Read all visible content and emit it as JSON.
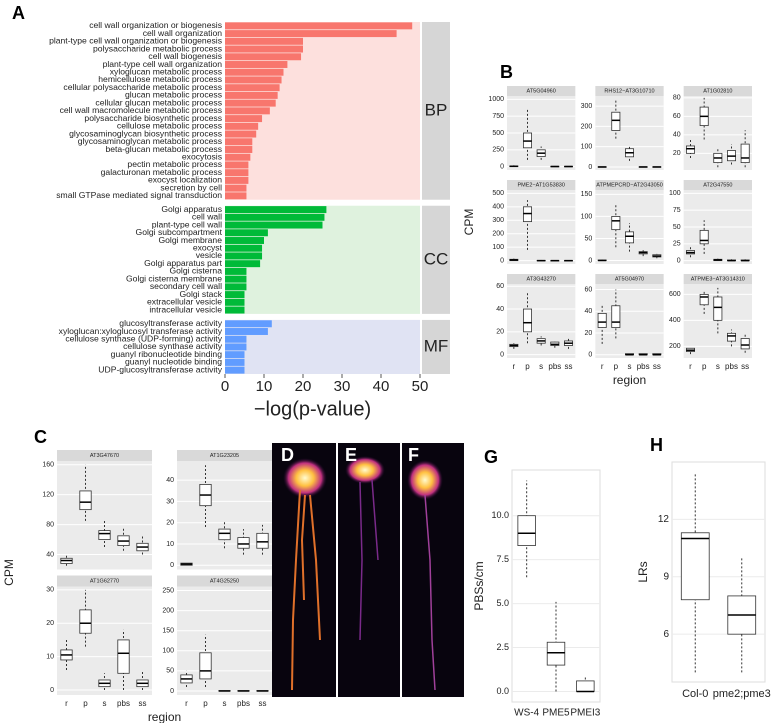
{
  "chart_data": [
    {
      "type": "bar",
      "orientation": "horizontal",
      "panel_label": "A",
      "xlabel": "−log(p-value)",
      "xlim": [
        0,
        50
      ],
      "xticks": [
        0,
        10,
        20,
        30,
        40,
        50
      ],
      "facets": [
        {
          "name": "BP",
          "color": "#f8766d",
          "background": "#fde0dd",
          "categories": [
            "cell wall organization or biogenesis",
            "cell wall organization",
            "plant-type cell wall organization or biogenesis",
            "polysaccharide metabolic process",
            "cell wall biogenesis",
            "plant-type cell wall organization",
            "xyloglucan metabolic process",
            "hemicellulose metabolic process",
            "cellular polysaccharide metabolic process",
            "glucan metabolic process",
            "cellular glucan metabolic process",
            "cell wall macromolecule metabolic process",
            "polysaccharide biosynthetic process",
            "cellulose metabolic process",
            "glycosaminoglycan biosynthetic process",
            "glycosaminoglycan metabolic process",
            "beta-glucan metabolic process",
            "exocytosis",
            "pectin metabolic process",
            "galacturonan metabolic process",
            "exocyst localization",
            "secretion by cell",
            "small GTPase mediated signal transduction"
          ],
          "values": [
            48,
            44,
            20,
            20,
            19.5,
            16,
            15,
            14.5,
            14,
            13.5,
            13,
            11.5,
            9.5,
            8.5,
            8,
            7,
            7,
            6.5,
            6,
            6,
            6,
            5.5,
            5.5
          ]
        },
        {
          "name": "CC",
          "color": "#00ba38",
          "background": "#dff2de",
          "categories": [
            "Golgi apparatus",
            "cell wall",
            "plant-type cell wall",
            "Golgi subcompartment",
            "Golgi membrane",
            "exocyst",
            "vesicle",
            "Golgi apparatus part",
            "Golgi cisterna",
            "Golgi cisterna membrane",
            "secondary cell wall",
            "Golgi stack",
            "extracellular vesicle",
            "intracellular vesicle"
          ],
          "values": [
            26,
            25.5,
            25,
            11,
            10,
            9.5,
            9.5,
            9,
            5.5,
            5.5,
            5.5,
            5,
            5,
            5
          ]
        },
        {
          "name": "MF",
          "color": "#619cff",
          "background": "#e0e3f3",
          "categories": [
            "glucosyltransferase activity",
            "xyloglucan:xyloglucosyl transferase activity",
            "cellulose synthase (UDP-forming) activity",
            "cellulose synthase activity",
            "guanyl ribonucleotide binding",
            "guanyl nucleotide binding",
            "UDP-glucosyltransferase activity"
          ],
          "values": [
            12,
            11,
            5.5,
            5.5,
            5,
            5,
            5
          ]
        }
      ]
    },
    {
      "type": "box",
      "panel_label": "B",
      "ylabel": "CPM",
      "xlabel": "region",
      "categories": [
        "r",
        "p",
        "s",
        "pbs",
        "ss"
      ],
      "facets": [
        {
          "title": "AT5G04960",
          "ylim": [
            -50,
            1050
          ],
          "yticks": [
            0,
            250,
            500,
            750,
            1000
          ],
          "values": [
            {
              "min": 0,
              "q1": 0,
              "median": 5,
              "q3": 10,
              "max": 20
            },
            {
              "min": 100,
              "q1": 280,
              "median": 380,
              "q3": 500,
              "max": 850
            },
            {
              "min": 100,
              "q1": 150,
              "median": 200,
              "q3": 250,
              "max": 300
            },
            {
              "min": 0,
              "q1": 0,
              "median": 2,
              "q3": 5,
              "max": 10
            },
            {
              "min": 0,
              "q1": 0,
              "median": 2,
              "q3": 5,
              "max": 10
            }
          ]
        },
        {
          "title": "RHS12−AT3G10710",
          "ylim": [
            -15,
            350
          ],
          "yticks": [
            0,
            100,
            200,
            300
          ],
          "values": [
            {
              "min": 0,
              "q1": 0,
              "median": 0,
              "q3": 1,
              "max": 2
            },
            {
              "min": 140,
              "q1": 180,
              "median": 230,
              "q3": 270,
              "max": 330
            },
            {
              "min": 30,
              "q1": 50,
              "median": 70,
              "q3": 90,
              "max": 100
            },
            {
              "min": 0,
              "q1": 0,
              "median": 0,
              "q3": 1,
              "max": 2
            },
            {
              "min": 0,
              "q1": 0,
              "median": 0,
              "q3": 1,
              "max": 2
            }
          ]
        },
        {
          "title": "AT1G02810",
          "ylim": [
            2,
            82
          ],
          "yticks": [
            20,
            40,
            60,
            80
          ],
          "values": [
            {
              "min": 15,
              "q1": 20,
              "median": 25,
              "q3": 28,
              "max": 35
            },
            {
              "min": 35,
              "q1": 50,
              "median": 60,
              "q3": 70,
              "max": 80
            },
            {
              "min": 5,
              "q1": 10,
              "median": 15,
              "q3": 20,
              "max": 25
            },
            {
              "min": 8,
              "q1": 12,
              "median": 17,
              "q3": 23,
              "max": 30
            },
            {
              "min": 5,
              "q1": 10,
              "median": 15,
              "q3": 30,
              "max": 45
            }
          ]
        },
        {
          "title": "PME2−AT1G53830",
          "ylim": [
            -25,
            525
          ],
          "yticks": [
            0,
            100,
            200,
            300,
            400,
            500
          ],
          "values": [
            {
              "min": 0,
              "q1": 0,
              "median": 5,
              "q3": 10,
              "max": 30
            },
            {
              "min": 80,
              "q1": 290,
              "median": 350,
              "q3": 400,
              "max": 450
            },
            {
              "min": 0,
              "q1": 0,
              "median": 0,
              "q3": 2,
              "max": 5
            },
            {
              "min": 0,
              "q1": 0,
              "median": 0,
              "q3": 1,
              "max": 2
            },
            {
              "min": 0,
              "q1": 0,
              "median": 0,
              "q3": 1,
              "max": 2
            }
          ]
        },
        {
          "title": "ATPMEPCRD−AT2G43050",
          "ylim": [
            -8,
            160
          ],
          "yticks": [
            0,
            50,
            100,
            150
          ],
          "values": [
            {
              "min": 0,
              "q1": 0,
              "median": 0,
              "q3": 1,
              "max": 2
            },
            {
              "min": 30,
              "q1": 70,
              "median": 90,
              "q3": 100,
              "max": 130
            },
            {
              "min": 20,
              "q1": 40,
              "median": 55,
              "q3": 65,
              "max": 85
            },
            {
              "min": 10,
              "q1": 15,
              "median": 18,
              "q3": 20,
              "max": 25
            },
            {
              "min": 5,
              "q1": 8,
              "median": 10,
              "q3": 13,
              "max": 15
            }
          ]
        },
        {
          "title": "AT2G47550",
          "ylim": [
            -5,
            105
          ],
          "yticks": [
            0,
            25,
            50,
            75,
            100
          ],
          "values": [
            {
              "min": 5,
              "q1": 10,
              "median": 12,
              "q3": 15,
              "max": 20
            },
            {
              "min": 10,
              "q1": 25,
              "median": 30,
              "q3": 45,
              "max": 60
            },
            {
              "min": 0,
              "q1": 0,
              "median": 1,
              "q3": 2,
              "max": 3
            },
            {
              "min": 0,
              "q1": 0,
              "median": 0,
              "q3": 1,
              "max": 2
            },
            {
              "min": 0,
              "q1": 0,
              "median": 0,
              "q3": 1,
              "max": 2
            }
          ]
        },
        {
          "title": "AT3G43270",
          "ylim": [
            -3,
            62
          ],
          "yticks": [
            0,
            20,
            40,
            60
          ],
          "values": [
            {
              "min": 5,
              "q1": 7,
              "median": 8,
              "q3": 9,
              "max": 10
            },
            {
              "min": 10,
              "q1": 20,
              "median": 28,
              "q3": 40,
              "max": 55
            },
            {
              "min": 8,
              "q1": 10,
              "median": 12,
              "q3": 14,
              "max": 16
            },
            {
              "min": 6,
              "q1": 8,
              "median": 9,
              "q3": 11,
              "max": 12
            },
            {
              "min": 5,
              "q1": 8,
              "median": 10,
              "q3": 12,
              "max": 15
            }
          ]
        },
        {
          "title": "AT5G04970",
          "ylim": [
            -3,
            65
          ],
          "yticks": [
            0,
            20,
            40,
            60
          ],
          "values": [
            {
              "min": 10,
              "q1": 25,
              "median": 30,
              "q3": 38,
              "max": 45
            },
            {
              "min": 15,
              "q1": 25,
              "median": 30,
              "q3": 45,
              "max": 60
            },
            {
              "min": 0,
              "q1": 0,
              "median": 0,
              "q3": 1,
              "max": 1
            },
            {
              "min": 0,
              "q1": 0,
              "median": 0,
              "q3": 1,
              "max": 1
            },
            {
              "min": 0,
              "q1": 0,
              "median": 0,
              "q3": 1,
              "max": 1
            }
          ]
        },
        {
          "title": "ATPME3−AT3G14310",
          "ylim": [
            110,
            680
          ],
          "yticks": [
            200,
            400,
            600
          ],
          "values": [
            {
              "min": 140,
              "q1": 160,
              "median": 170,
              "q3": 185,
              "max": 200
            },
            {
              "min": 450,
              "q1": 520,
              "median": 580,
              "q3": 600,
              "max": 620
            },
            {
              "min": 300,
              "q1": 400,
              "median": 500,
              "q3": 580,
              "max": 650
            },
            {
              "min": 200,
              "q1": 240,
              "median": 280,
              "q3": 300,
              "max": 330
            },
            {
              "min": 150,
              "q1": 180,
              "median": 210,
              "q3": 260,
              "max": 300
            }
          ]
        }
      ]
    },
    {
      "type": "box",
      "panel_label": "C",
      "ylabel": "CPM",
      "xlabel": "region",
      "categories": [
        "r",
        "p",
        "s",
        "pbs",
        "ss"
      ],
      "facets": [
        {
          "title": "AT3G47670",
          "ylim": [
            20,
            165
          ],
          "yticks": [
            40,
            80,
            120,
            160
          ],
          "values": [
            {
              "min": 25,
              "q1": 28,
              "median": 32,
              "q3": 35,
              "max": 40
            },
            {
              "min": 85,
              "q1": 100,
              "median": 110,
              "q3": 125,
              "max": 160
            },
            {
              "min": 50,
              "q1": 60,
              "median": 68,
              "q3": 72,
              "max": 85
            },
            {
              "min": 45,
              "q1": 52,
              "median": 58,
              "q3": 65,
              "max": 75
            },
            {
              "min": 40,
              "q1": 45,
              "median": 50,
              "q3": 55,
              "max": 65
            }
          ]
        },
        {
          "title": "AT1G23205",
          "ylim": [
            -2,
            49
          ],
          "yticks": [
            0,
            10,
            20,
            30,
            40
          ],
          "values": [
            {
              "min": 0,
              "q1": 0,
              "median": 0.5,
              "q3": 1,
              "max": 1.5
            },
            {
              "min": 18,
              "q1": 28,
              "median": 33,
              "q3": 38,
              "max": 47
            },
            {
              "min": 8,
              "q1": 12,
              "median": 15,
              "q3": 17,
              "max": 21
            },
            {
              "min": 5,
              "q1": 8,
              "median": 10,
              "q3": 13,
              "max": 17
            },
            {
              "min": 5,
              "q1": 8,
              "median": 11,
              "q3": 15,
              "max": 19
            }
          ]
        },
        {
          "title": "AT1G62770",
          "ylim": [
            -1.5,
            31
          ],
          "yticks": [
            0,
            10,
            20,
            30
          ],
          "values": [
            {
              "min": 6,
              "q1": 9,
              "median": 10.5,
              "q3": 12,
              "max": 15
            },
            {
              "min": 13,
              "q1": 17,
              "median": 20,
              "q3": 24,
              "max": 30
            },
            {
              "min": 0,
              "q1": 1,
              "median": 2,
              "q3": 3,
              "max": 5
            },
            {
              "min": 0,
              "q1": 5,
              "median": 11,
              "q3": 15,
              "max": 18
            },
            {
              "min": 0,
              "q1": 1,
              "median": 2,
              "q3": 3,
              "max": 6
            }
          ]
        },
        {
          "title": "AT4G25250",
          "ylim": [
            -10,
            260
          ],
          "yticks": [
            0,
            50,
            100,
            150,
            200,
            250
          ],
          "values": [
            {
              "min": 10,
              "q1": 20,
              "median": 30,
              "q3": 40,
              "max": 50
            },
            {
              "min": 10,
              "q1": 30,
              "median": 50,
              "q3": 95,
              "max": 140
            },
            {
              "min": 0,
              "q1": 0,
              "median": 0,
              "q3": 1,
              "max": 1
            },
            {
              "min": 0,
              "q1": 0,
              "median": 0,
              "q3": 1,
              "max": 1
            },
            {
              "min": 0,
              "q1": 0,
              "median": 0,
              "q3": 1,
              "max": 1
            }
          ]
        }
      ]
    },
    {
      "type": "box",
      "panel_label": "G",
      "ylabel": "PBSs/cm",
      "categories": [
        "WS-4",
        "PME5",
        "PMEI3"
      ],
      "facets": [
        {
          "ylim": [
            -0.6,
            12.6
          ],
          "yticks": [
            {
              "value": 0,
              "label": "0.0"
            },
            {
              "value": 2.5,
              "label": "2.5"
            },
            {
              "value": 5,
              "label": "5.0"
            },
            {
              "value": 7.5,
              "label": "7.5"
            },
            {
              "value": 10,
              "label": "10.0"
            }
          ],
          "values": [
            {
              "min": 6.5,
              "q1": 8.3,
              "median": 9,
              "q3": 10,
              "max": 12
            },
            {
              "min": 0,
              "q1": 1.5,
              "median": 2.2,
              "q3": 2.8,
              "max": 5.1
            },
            {
              "min": 0,
              "q1": 0,
              "median": 0,
              "q3": 0.6,
              "max": 0.8
            }
          ]
        }
      ]
    },
    {
      "type": "box",
      "panel_label": "H",
      "ylabel": "LRs",
      "categories": [
        "Col-0",
        "pme2;pme3"
      ],
      "facets": [
        {
          "ylim": [
            3.5,
            15
          ],
          "yticks": [
            6,
            9,
            12
          ],
          "values": [
            {
              "min": 4,
              "q1": 7.8,
              "median": 11,
              "q3": 11.3,
              "max": 14.4
            },
            {
              "min": 4,
              "q1": 6,
              "median": 7,
              "q3": 8,
              "max": 10
            }
          ]
        }
      ]
    }
  ],
  "image_panels": [
    {
      "label": "D"
    },
    {
      "label": "E"
    },
    {
      "label": "F"
    }
  ]
}
